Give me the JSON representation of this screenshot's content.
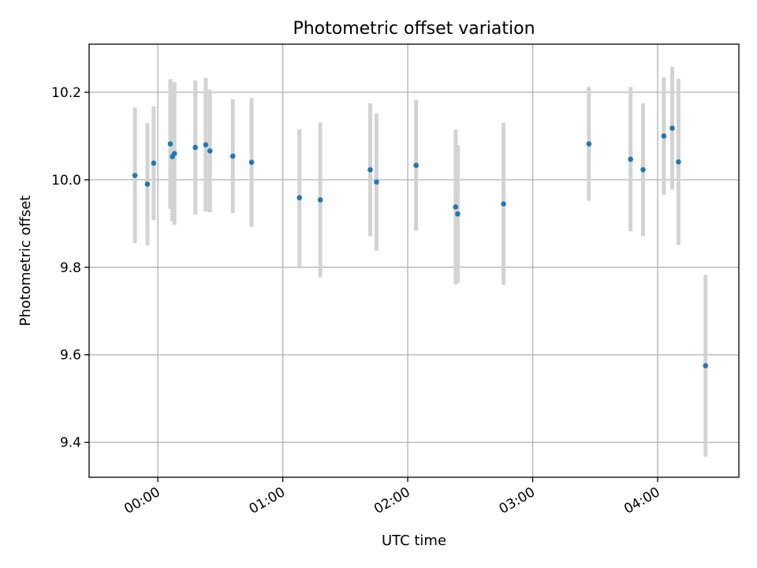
{
  "chart_data": {
    "type": "scatter",
    "title": "Photometric offset variation",
    "xlabel": "UTC time",
    "ylabel": "Photometric offset",
    "x_unit": "UTC time (HH:MM, hours)",
    "xlim": [
      "23:27:00",
      "04:39:00"
    ],
    "ylim": [
      9.32,
      10.31
    ],
    "x_ticks": [
      "00:00",
      "01:00",
      "02:00",
      "03:00",
      "04:00"
    ],
    "y_ticks": [
      "9.4",
      "9.6",
      "9.8",
      "10.0",
      "10.2"
    ],
    "grid": true,
    "point_color": "#1f77b4",
    "errorbar_color": "#d3d3d3",
    "series": [
      {
        "points": [
          {
            "time": "23:49",
            "y": 10.01,
            "err": 0.155
          },
          {
            "time": "23:55",
            "y": 9.99,
            "err": 0.14
          },
          {
            "time": "23:58",
            "y": 10.038,
            "err": 0.13
          },
          {
            "time": "00:06",
            "y": 10.082,
            "err": 0.148
          },
          {
            "time": "00:07",
            "y": 10.053,
            "err": 0.148
          },
          {
            "time": "00:08",
            "y": 10.06,
            "err": 0.163
          },
          {
            "time": "00:18",
            "y": 10.074,
            "err": 0.153
          },
          {
            "time": "00:23",
            "y": 10.08,
            "err": 0.153
          },
          {
            "time": "00:25",
            "y": 10.066,
            "err": 0.14
          },
          {
            "time": "00:36",
            "y": 10.054,
            "err": 0.13
          },
          {
            "time": "00:45",
            "y": 10.04,
            "err": 0.147
          },
          {
            "time": "01:08",
            "y": 9.959,
            "err": 0.157
          },
          {
            "time": "01:18",
            "y": 9.954,
            "err": 0.177
          },
          {
            "time": "01:42",
            "y": 10.023,
            "err": 0.152
          },
          {
            "time": "01:45",
            "y": 9.995,
            "err": 0.157
          },
          {
            "time": "02:04",
            "y": 10.033,
            "err": 0.15
          },
          {
            "time": "02:23",
            "y": 9.938,
            "err": 0.177
          },
          {
            "time": "02:24",
            "y": 9.922,
            "err": 0.157
          },
          {
            "time": "02:46",
            "y": 9.945,
            "err": 0.185
          },
          {
            "time": "03:27",
            "y": 10.082,
            "err": 0.13
          },
          {
            "time": "03:47",
            "y": 10.047,
            "err": 0.165
          },
          {
            "time": "03:53",
            "y": 10.023,
            "err": 0.152
          },
          {
            "time": "04:03",
            "y": 10.1,
            "err": 0.135
          },
          {
            "time": "04:07",
            "y": 10.118,
            "err": 0.14
          },
          {
            "time": "04:10",
            "y": 10.041,
            "err": 0.19
          },
          {
            "time": "04:23",
            "y": 9.575,
            "err": 0.208
          }
        ]
      }
    ]
  }
}
